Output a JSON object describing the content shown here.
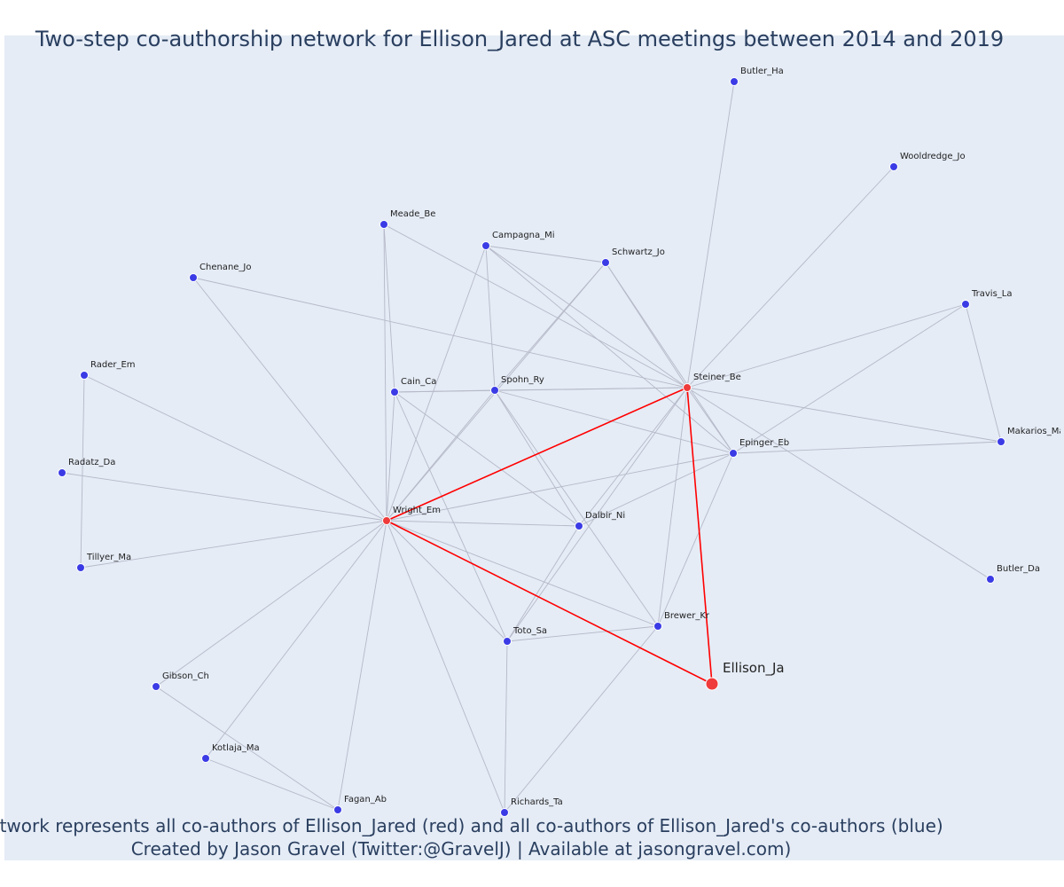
{
  "title": "Two-step co-authorship network for Ellison_Jared at ASC meetings between 2014 and 2019",
  "caption_line1": "Network represents all co-authors of Ellison_Jared (red) and all co-authors of Ellison_Jared's co-authors (blue)",
  "caption_line2": "Created by Jason Gravel (Twitter:@GravelJ) | Available at jasongravel.com)",
  "colors": {
    "background": "#e5ecf6",
    "edge": "#b6b9c8",
    "focal_edge": "#ff0000",
    "red_node": "#ef3b3b",
    "blue_node": "#3b3be6",
    "node_outline": "#ffffff"
  },
  "nodes": [
    {
      "id": "Butler_Ha",
      "label": "Butler_Ha",
      "group": "blue"
    },
    {
      "id": "Wooldredge_Jo",
      "label": "Wooldredge_Jo",
      "group": "blue"
    },
    {
      "id": "Meade_Be",
      "label": "Meade_Be",
      "group": "blue"
    },
    {
      "id": "Campagna_Mi",
      "label": "Campagna_Mi",
      "group": "blue"
    },
    {
      "id": "Schwartz_Jo",
      "label": "Schwartz_Jo",
      "group": "blue"
    },
    {
      "id": "Chenane_Jo",
      "label": "Chenane_Jo",
      "group": "blue"
    },
    {
      "id": "Travis_La",
      "label": "Travis_La",
      "group": "blue"
    },
    {
      "id": "Rader_Em",
      "label": "Rader_Em",
      "group": "blue"
    },
    {
      "id": "Cain_Ca",
      "label": "Cain_Ca",
      "group": "blue"
    },
    {
      "id": "Spohn_Ry",
      "label": "Spohn_Ry",
      "group": "blue"
    },
    {
      "id": "Steiner_Be",
      "label": "Steiner_Be",
      "group": "red"
    },
    {
      "id": "Makarios_Ma",
      "label": "Makarios_Ma",
      "group": "blue"
    },
    {
      "id": "Epinger_Eb",
      "label": "Epinger_Eb",
      "group": "blue"
    },
    {
      "id": "Radatz_Da",
      "label": "Radatz_Da",
      "group": "blue"
    },
    {
      "id": "Wright_Em",
      "label": "Wright_Em",
      "group": "red"
    },
    {
      "id": "Dalbir_Ni",
      "label": "Dalbir_Ni",
      "group": "blue"
    },
    {
      "id": "Tillyer_Ma",
      "label": "Tillyer_Ma",
      "group": "blue"
    },
    {
      "id": "Butler_Da",
      "label": "Butler_Da",
      "group": "blue"
    },
    {
      "id": "Brewer_Kr",
      "label": "Brewer_Kr",
      "group": "blue"
    },
    {
      "id": "Toto_Sa",
      "label": "Toto_Sa",
      "group": "blue"
    },
    {
      "id": "Ellison_Ja",
      "label": "Ellison_Ja",
      "group": "focal"
    },
    {
      "id": "Gibson_Ch",
      "label": "Gibson_Ch",
      "group": "blue"
    },
    {
      "id": "Kotlaja_Ma",
      "label": "Kotlaja_Ma",
      "group": "blue"
    },
    {
      "id": "Fagan_Ab",
      "label": "Fagan_Ab",
      "group": "blue"
    },
    {
      "id": "Richards_Ta",
      "label": "Richards_Ta",
      "group": "blue"
    }
  ],
  "edges": [
    [
      "Ellison_Ja",
      "Wright_Em"
    ],
    [
      "Ellison_Ja",
      "Steiner_Be"
    ],
    [
      "Wright_Em",
      "Steiner_Be"
    ],
    [
      "Steiner_Be",
      "Butler_Ha"
    ],
    [
      "Steiner_Be",
      "Wooldredge_Jo"
    ],
    [
      "Steiner_Be",
      "Meade_Be"
    ],
    [
      "Steiner_Be",
      "Campagna_Mi"
    ],
    [
      "Steiner_Be",
      "Schwartz_Jo"
    ],
    [
      "Steiner_Be",
      "Chenane_Jo"
    ],
    [
      "Steiner_Be",
      "Travis_La"
    ],
    [
      "Steiner_Be",
      "Cain_Ca"
    ],
    [
      "Steiner_Be",
      "Spohn_Ry"
    ],
    [
      "Steiner_Be",
      "Epinger_Eb"
    ],
    [
      "Steiner_Be",
      "Makarios_Ma"
    ],
    [
      "Steiner_Be",
      "Dalbir_Ni"
    ],
    [
      "Steiner_Be",
      "Butler_Da"
    ],
    [
      "Steiner_Be",
      "Brewer_Kr"
    ],
    [
      "Steiner_Be",
      "Toto_Sa"
    ],
    [
      "Wright_Em",
      "Meade_Be"
    ],
    [
      "Wright_Em",
      "Campagna_Mi"
    ],
    [
      "Wright_Em",
      "Schwartz_Jo"
    ],
    [
      "Wright_Em",
      "Chenane_Jo"
    ],
    [
      "Wright_Em",
      "Rader_Em"
    ],
    [
      "Wright_Em",
      "Cain_Ca"
    ],
    [
      "Wright_Em",
      "Spohn_Ry"
    ],
    [
      "Wright_Em",
      "Epinger_Eb"
    ],
    [
      "Wright_Em",
      "Radatz_Da"
    ],
    [
      "Wright_Em",
      "Dalbir_Ni"
    ],
    [
      "Wright_Em",
      "Tillyer_Ma"
    ],
    [
      "Wright_Em",
      "Brewer_Kr"
    ],
    [
      "Wright_Em",
      "Toto_Sa"
    ],
    [
      "Wright_Em",
      "Gibson_Ch"
    ],
    [
      "Wright_Em",
      "Kotlaja_Ma"
    ],
    [
      "Wright_Em",
      "Fagan_Ab"
    ],
    [
      "Wright_Em",
      "Richards_Ta"
    ],
    [
      "Meade_Be",
      "Cain_Ca"
    ],
    [
      "Campagna_Mi",
      "Schwartz_Jo"
    ],
    [
      "Campagna_Mi",
      "Spohn_Ry"
    ],
    [
      "Campagna_Mi",
      "Epinger_Eb"
    ],
    [
      "Schwartz_Jo",
      "Spohn_Ry"
    ],
    [
      "Schwartz_Jo",
      "Epinger_Eb"
    ],
    [
      "Rader_Em",
      "Tillyer_Ma"
    ],
    [
      "Travis_La",
      "Makarios_Ma"
    ],
    [
      "Travis_La",
      "Epinger_Eb"
    ],
    [
      "Cain_Ca",
      "Spohn_Ry"
    ],
    [
      "Cain_Ca",
      "Dalbir_Ni"
    ],
    [
      "Cain_Ca",
      "Toto_Sa"
    ],
    [
      "Spohn_Ry",
      "Epinger_Eb"
    ],
    [
      "Spohn_Ry",
      "Dalbir_Ni"
    ],
    [
      "Spohn_Ry",
      "Brewer_Kr"
    ],
    [
      "Epinger_Eb",
      "Makarios_Ma"
    ],
    [
      "Epinger_Eb",
      "Dalbir_Ni"
    ],
    [
      "Epinger_Eb",
      "Brewer_Kr"
    ],
    [
      "Dalbir_Ni",
      "Toto_Sa"
    ],
    [
      "Brewer_Kr",
      "Toto_Sa"
    ],
    [
      "Brewer_Kr",
      "Richards_Ta"
    ],
    [
      "Toto_Sa",
      "Richards_Ta"
    ],
    [
      "Gibson_Ch",
      "Fagan_Ab"
    ],
    [
      "Kotlaja_Ma",
      "Fagan_Ab"
    ]
  ]
}
